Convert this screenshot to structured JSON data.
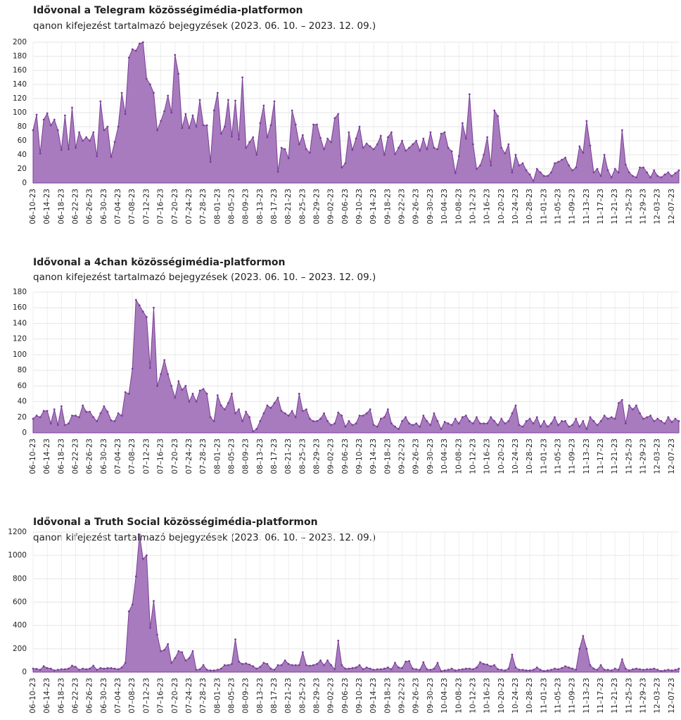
{
  "chart_data": [
    {
      "type": "area",
      "title": "Idővonal a Telegram közösségimédia-platformon",
      "subtitle": "qanon kifejezést tartalmazó bejegyzések (2023. 06. 10. – 2023. 12. 09.)",
      "categories": [
        "06–10–23",
        null,
        null,
        null,
        "06–14–23",
        null,
        null,
        null,
        "06–18–23",
        null,
        null,
        null,
        "06–22–23",
        null,
        null,
        null,
        "06–26–23",
        null,
        null,
        null,
        "06–30–23",
        null,
        null,
        null,
        "07–04–23",
        null,
        null,
        null,
        "07–08–23",
        null,
        null,
        null,
        "07–12–23",
        null,
        null,
        null,
        "07–16–23",
        null,
        null,
        null,
        "07–20–23",
        null,
        null,
        null,
        "07–24–23",
        null,
        null,
        null,
        "07–28–23",
        null,
        null,
        null,
        "08–01–23",
        null,
        null,
        null,
        "08–05–23",
        null,
        null,
        null,
        "08–09–23",
        null,
        null,
        null,
        "08–13–23",
        null,
        null,
        null,
        "08–17–23",
        null,
        null,
        null,
        "08–21–23",
        null,
        null,
        null,
        "08–25–23",
        null,
        null,
        null,
        "08–29–23",
        null,
        null,
        null,
        "09–02–23",
        null,
        null,
        null,
        "09–06–23",
        null,
        null,
        null,
        "09–10–23",
        null,
        null,
        null,
        "09–14–23",
        null,
        null,
        null,
        "09–18–23",
        null,
        null,
        null,
        "09–22–23",
        null,
        null,
        null,
        "09–26–23",
        null,
        null,
        null,
        "09–30–23",
        null,
        null,
        null,
        "10–04–23",
        null,
        null,
        null,
        "10–08–23",
        null,
        null,
        null,
        "10–12–23",
        null,
        null,
        null,
        "10–16–23",
        null,
        null,
        null,
        "10–20–23",
        null,
        null,
        null,
        "10–24–23",
        null,
        null,
        null,
        "10–28–23",
        null,
        null,
        null,
        "11–01–23",
        null,
        null,
        null,
        "11–05–23",
        null,
        null,
        null,
        "11–09–23",
        null,
        null,
        null,
        "11–13–23",
        null,
        null,
        null,
        "11–17–23",
        null,
        null,
        null,
        "11–21–23",
        null,
        null,
        null,
        "11–25–23",
        null,
        null,
        null,
        "11–29–23",
        null,
        null,
        null,
        "12–03–23",
        null,
        null,
        null,
        "12–07–23",
        null,
        null
      ],
      "values": [
        75,
        97,
        42,
        90,
        99,
        82,
        90,
        75,
        47,
        96,
        48,
        107,
        50,
        72,
        60,
        65,
        60,
        72,
        38,
        116,
        75,
        80,
        37,
        58,
        80,
        128,
        98,
        178,
        190,
        188,
        198,
        200,
        148,
        140,
        128,
        75,
        88,
        102,
        124,
        100,
        182,
        155,
        78,
        98,
        78,
        96,
        80,
        118,
        82,
        82,
        30,
        103,
        128,
        70,
        80,
        118,
        66,
        117,
        62,
        150,
        50,
        58,
        65,
        40,
        85,
        110,
        65,
        82,
        116,
        16,
        50,
        48,
        35,
        103,
        83,
        55,
        68,
        48,
        43,
        83,
        83,
        64,
        48,
        63,
        58,
        92,
        98,
        22,
        28,
        72,
        47,
        63,
        80,
        50,
        56,
        52,
        48,
        55,
        67,
        40,
        65,
        72,
        41,
        50,
        60,
        46,
        50,
        55,
        60,
        46,
        63,
        48,
        72,
        50,
        48,
        70,
        72,
        50,
        45,
        14,
        38,
        85,
        63,
        126,
        55,
        20,
        25,
        40,
        65,
        25,
        103,
        95,
        50,
        42,
        55,
        15,
        40,
        25,
        28,
        18,
        12,
        3,
        20,
        15,
        10,
        10,
        15,
        28,
        30,
        33,
        36,
        25,
        18,
        22,
        52,
        43,
        88,
        53,
        15,
        20,
        10,
        40,
        18,
        8,
        20,
        15,
        75,
        26,
        15,
        10,
        8,
        22,
        22,
        15,
        8,
        18,
        10,
        8,
        12,
        15,
        10,
        14,
        18
      ],
      "color": "#a77bbd",
      "line_color": "#7b3f98",
      "ylim": [
        0,
        200
      ],
      "yticks": [
        0,
        20,
        40,
        60,
        80,
        100,
        120,
        140,
        160,
        180,
        200
      ],
      "grid": true
    },
    {
      "type": "area",
      "title": "Idővonal a 4chan közösségimédia-platformon",
      "subtitle": "qanon kifejezést tartalmazó bejegyzések (2023. 06. 10. – 2023. 12. 09.)",
      "categories": [
        "06–10–23",
        null,
        null,
        null,
        "06–14–23",
        null,
        null,
        null,
        "06–18–23",
        null,
        null,
        null,
        "06–22–23",
        null,
        null,
        null,
        "06–26–23",
        null,
        null,
        null,
        "06–30–23",
        null,
        null,
        null,
        "07–04–23",
        null,
        null,
        null,
        "07–08–23",
        null,
        null,
        null,
        "07–12–23",
        null,
        null,
        null,
        "07–16–23",
        null,
        null,
        null,
        "07–20–23",
        null,
        null,
        null,
        "07–24–23",
        null,
        null,
        null,
        "07–28–23",
        null,
        null,
        null,
        "08–01–23",
        null,
        null,
        null,
        "08–05–23",
        null,
        null,
        null,
        "08–09–23",
        null,
        null,
        null,
        "08–13–23",
        null,
        null,
        null,
        "08–17–23",
        null,
        null,
        null,
        "08–21–23",
        null,
        null,
        null,
        "08–25–23",
        null,
        null,
        null,
        "08–29–23",
        null,
        null,
        null,
        "09–02–23",
        null,
        null,
        null,
        "09–06–23",
        null,
        null,
        null,
        "09–10–23",
        null,
        null,
        null,
        "09–14–23",
        null,
        null,
        null,
        "09–18–23",
        null,
        null,
        null,
        "09–22–23",
        null,
        null,
        null,
        "09–26–23",
        null,
        null,
        null,
        "09–30–23",
        null,
        null,
        null,
        "10–04–23",
        null,
        null,
        null,
        "10–08–23",
        null,
        null,
        null,
        "10–12–23",
        null,
        null,
        null,
        "10–16–23",
        null,
        null,
        null,
        "10–20–23",
        null,
        null,
        null,
        "10–24–23",
        null,
        null,
        null,
        "10–28–23",
        null,
        null,
        null,
        "11–01–23",
        null,
        null,
        null,
        "11–05–23",
        null,
        null,
        null,
        "11–09–23",
        null,
        null,
        null,
        "11–13–23",
        null,
        null,
        null,
        "11–17–23",
        null,
        null,
        null,
        "11–21–23",
        null,
        null,
        null,
        "11–25–23",
        null,
        null,
        null,
        "11–29–23",
        null,
        null,
        null,
        "12–03–23",
        null,
        null,
        null,
        "12–07–23",
        null,
        null
      ],
      "values": [
        18,
        22,
        20,
        28,
        28,
        12,
        30,
        10,
        34,
        10,
        12,
        22,
        22,
        20,
        35,
        27,
        27,
        20,
        15,
        25,
        34,
        27,
        16,
        15,
        25,
        22,
        52,
        50,
        82,
        170,
        163,
        155,
        148,
        83,
        160,
        60,
        75,
        93,
        75,
        60,
        45,
        66,
        55,
        60,
        40,
        50,
        40,
        54,
        56,
        50,
        20,
        15,
        48,
        35,
        30,
        38,
        50,
        25,
        30,
        15,
        27,
        20,
        2,
        5,
        15,
        25,
        35,
        32,
        38,
        45,
        28,
        25,
        22,
        28,
        20,
        50,
        28,
        30,
        18,
        15,
        15,
        18,
        25,
        15,
        10,
        12,
        26,
        22,
        8,
        15,
        10,
        12,
        22,
        22,
        25,
        30,
        10,
        8,
        18,
        20,
        30,
        12,
        8,
        5,
        15,
        20,
        12,
        10,
        12,
        8,
        22,
        15,
        10,
        25,
        15,
        5,
        14,
        12,
        10,
        18,
        12,
        20,
        22,
        15,
        12,
        20,
        12,
        12,
        12,
        20,
        15,
        10,
        18,
        12,
        15,
        25,
        35,
        10,
        8,
        15,
        18,
        12,
        20,
        8,
        15,
        8,
        12,
        20,
        10,
        15,
        15,
        8,
        10,
        18,
        8,
        15,
        5,
        20,
        15,
        10,
        15,
        22,
        18,
        20,
        18,
        38,
        42,
        12,
        35,
        30,
        35,
        25,
        18,
        20,
        22,
        15,
        18,
        15,
        12,
        20,
        14,
        18,
        15
      ],
      "color": "#a77bbd",
      "line_color": "#7b3f98",
      "ylim": [
        0,
        180
      ],
      "yticks": [
        0,
        20,
        40,
        60,
        80,
        100,
        120,
        140,
        160,
        180
      ],
      "grid": true
    },
    {
      "type": "area",
      "title": "Idővonal a Truth Social közösségimédia-platformon",
      "subtitle": "qanon kifejezést tartalmazó bejegyzések (2023. 06. 10. – 2023. 12. 09.)",
      "categories": [
        "06–10–23",
        null,
        null,
        null,
        "06–14–23",
        null,
        null,
        null,
        "06–18–23",
        null,
        null,
        null,
        "06–22–23",
        null,
        null,
        null,
        "06–26–23",
        null,
        null,
        null,
        "06–30–23",
        null,
        null,
        null,
        "07–04–23",
        null,
        null,
        null,
        "07–08–23",
        null,
        null,
        null,
        "07–12–23",
        null,
        null,
        null,
        "07–16–23",
        null,
        null,
        null,
        "07–20–23",
        null,
        null,
        null,
        "07–24–23",
        null,
        null,
        null,
        "07–28–23",
        null,
        null,
        null,
        "08–01–23",
        null,
        null,
        null,
        "08–05–23",
        null,
        null,
        null,
        "08–09–23",
        null,
        null,
        null,
        "08–13–23",
        null,
        null,
        null,
        "08–17–23",
        null,
        null,
        null,
        "08–21–23",
        null,
        null,
        null,
        "08–25–23",
        null,
        null,
        null,
        "08–29–23",
        null,
        null,
        null,
        "09–02–23",
        null,
        null,
        null,
        "09–06–23",
        null,
        null,
        null,
        "09–10–23",
        null,
        null,
        null,
        "09–14–23",
        null,
        null,
        null,
        "09–18–23",
        null,
        null,
        null,
        "09–22–23",
        null,
        null,
        null,
        "09–26–23",
        null,
        null,
        null,
        "09–30–23",
        null,
        null,
        null,
        "10–04–23",
        null,
        null,
        null,
        "10–08–23",
        null,
        null,
        null,
        "10–12–23",
        null,
        null,
        null,
        "10–16–23",
        null,
        null,
        null,
        "10–20–23",
        null,
        null,
        null,
        "10–24–23",
        null,
        null,
        null,
        "10–28–23",
        null,
        null,
        null,
        "11–01–23",
        null,
        null,
        null,
        "11–05–23",
        null,
        null,
        null,
        "11–09–23",
        null,
        null,
        null,
        "11–13–23",
        null,
        null,
        null,
        "11–17–23",
        null,
        null,
        null,
        "11–21–23",
        null,
        null,
        null,
        "11–25–23",
        null,
        null,
        null,
        "11–29–23",
        null,
        null,
        null,
        "12–03–23",
        null,
        null,
        null,
        "12–07–23",
        null,
        null
      ],
      "values": [
        30,
        28,
        20,
        50,
        35,
        30,
        15,
        20,
        25,
        25,
        30,
        55,
        45,
        20,
        30,
        25,
        30,
        55,
        20,
        35,
        30,
        35,
        35,
        30,
        25,
        40,
        80,
        520,
        580,
        820,
        1180,
        970,
        1000,
        380,
        610,
        320,
        180,
        190,
        240,
        80,
        120,
        180,
        170,
        100,
        120,
        180,
        20,
        25,
        60,
        20,
        15,
        15,
        20,
        30,
        60,
        60,
        70,
        280,
        90,
        70,
        75,
        65,
        50,
        30,
        45,
        80,
        70,
        30,
        20,
        60,
        60,
        100,
        70,
        60,
        60,
        60,
        170,
        60,
        55,
        60,
        70,
        100,
        60,
        100,
        60,
        25,
        270,
        60,
        30,
        30,
        35,
        40,
        60,
        25,
        40,
        30,
        20,
        25,
        25,
        30,
        40,
        25,
        80,
        40,
        35,
        90,
        95,
        30,
        25,
        20,
        85,
        25,
        20,
        30,
        80,
        10,
        15,
        20,
        30,
        15,
        20,
        25,
        30,
        30,
        25,
        40,
        85,
        70,
        65,
        50,
        60,
        25,
        20,
        15,
        30,
        150,
        40,
        20,
        20,
        15,
        15,
        20,
        40,
        20,
        10,
        15,
        20,
        30,
        25,
        35,
        50,
        40,
        30,
        20,
        200,
        310,
        200,
        60,
        30,
        20,
        60,
        20,
        20,
        15,
        30,
        20,
        110,
        30,
        15,
        25,
        30,
        25,
        20,
        25,
        25,
        30,
        20,
        10,
        15,
        20,
        15,
        20,
        30
      ],
      "color": "#a77bbd",
      "line_color": "#7b3f98",
      "ylim": [
        0,
        1200
      ],
      "yticks": [
        0,
        200,
        400,
        600,
        800,
        1000,
        1200
      ],
      "grid": true
    }
  ]
}
